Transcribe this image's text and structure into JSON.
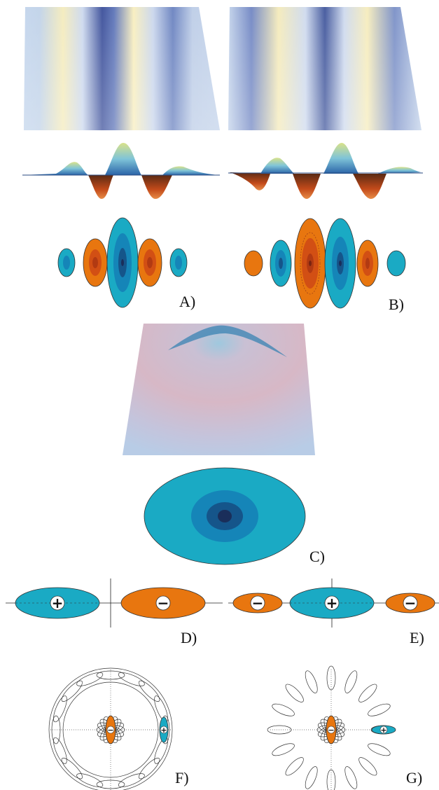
{
  "labels": {
    "A": "A)",
    "B": "B)",
    "C": "C)",
    "D": "D)",
    "E": "E)",
    "F": "F)",
    "G": "G)"
  },
  "signs": {
    "plus": "+",
    "minus": "−"
  },
  "colors": {
    "cyan": "#1aaac4",
    "cyan_mid": "#1585b8",
    "cyan_dark": "#15558a",
    "navy": "#1a2e5a",
    "orange": "#e8760f",
    "orange_mid": "#d24f14",
    "orange_dark": "#b23a12",
    "surface_light": "#b8c8e0",
    "surface_yellow": "#f3e6b0",
    "surface_blue": "#2a3f8c",
    "dome_pink": "#d7b8c6",
    "dome_blue": "#b8cce6"
  }
}
